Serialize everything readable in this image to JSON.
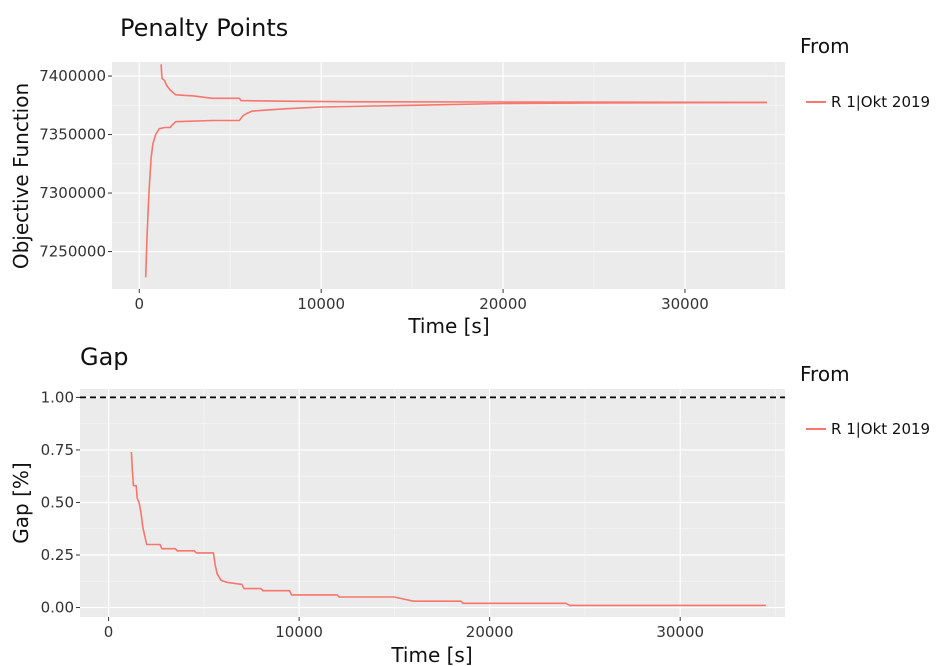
{
  "chart_data": [
    {
      "type": "line",
      "title": "Penalty Points",
      "xlabel": "Time [s]",
      "ylabel": "Objective Function",
      "xlim": [
        -1500,
        35500
      ],
      "ylim": [
        7218000,
        7412000
      ],
      "xticks": [
        0,
        10000,
        20000,
        30000
      ],
      "xtick_labels": [
        "0",
        "10000",
        "20000",
        "30000"
      ],
      "yticks": [
        7250000,
        7300000,
        7350000,
        7400000
      ],
      "ytick_labels": [
        "7250000",
        "7300000",
        "7350000",
        "7400000"
      ],
      "grid": true,
      "legend": {
        "title": "From",
        "placement": "right"
      },
      "series": [
        {
          "name": "R 1|Okt 2019",
          "color": "#F8766D",
          "segments": [
            [
              [
                1200,
                7410000
              ],
              [
                1250,
                7398000
              ],
              [
                1400,
                7396000
              ],
              [
                1500,
                7392000
              ],
              [
                1700,
                7388000
              ],
              [
                2000,
                7384000
              ],
              [
                3000,
                7383000
              ],
              [
                4000,
                7381000
              ],
              [
                5500,
                7381000
              ],
              [
                5600,
                7379000
              ],
              [
                8000,
                7378500
              ],
              [
                12000,
                7378000
              ],
              [
                20000,
                7377800
              ],
              [
                34500,
                7377500
              ]
            ],
            [
              [
                350,
                7228000
              ],
              [
                420,
                7260000
              ],
              [
                500,
                7290000
              ],
              [
                550,
                7305000
              ],
              [
                650,
                7330000
              ],
              [
                750,
                7342000
              ],
              [
                900,
                7350000
              ],
              [
                1100,
                7355000
              ],
              [
                1400,
                7356000
              ],
              [
                1700,
                7356000
              ],
              [
                1800,
                7358000
              ],
              [
                2000,
                7361000
              ],
              [
                4000,
                7362000
              ],
              [
                5500,
                7362000
              ],
              [
                5700,
                7366000
              ],
              [
                5900,
                7368000
              ],
              [
                6200,
                7370000
              ],
              [
                8000,
                7372000
              ],
              [
                10000,
                7373500
              ],
              [
                15000,
                7375000
              ],
              [
                20000,
                7376500
              ],
              [
                25000,
                7377000
              ],
              [
                34500,
                7377500
              ]
            ]
          ]
        }
      ]
    },
    {
      "type": "line",
      "title": "Gap",
      "xlabel": "Time [s]",
      "ylabel": "Gap [%]",
      "xlim": [
        -1500,
        35500
      ],
      "ylim": [
        -0.045,
        1.04
      ],
      "xticks": [
        0,
        10000,
        20000,
        30000
      ],
      "xtick_labels": [
        "0",
        "10000",
        "20000",
        "30000"
      ],
      "yticks": [
        0.0,
        0.25,
        0.5,
        0.75,
        1.0
      ],
      "ytick_labels": [
        "0.00",
        "0.25",
        "0.50",
        "0.75",
        "1.00"
      ],
      "grid": true,
      "reference_line": {
        "y": 1.0,
        "style": "dashed",
        "color": "#000000"
      },
      "legend": {
        "title": "From",
        "placement": "right"
      },
      "series": [
        {
          "name": "R 1|Okt 2019",
          "color": "#F8766D",
          "segments": [
            [
              [
                1200,
                0.74
              ],
              [
                1250,
                0.65
              ],
              [
                1300,
                0.58
              ],
              [
                1450,
                0.58
              ],
              [
                1500,
                0.52
              ],
              [
                1600,
                0.5
              ],
              [
                1700,
                0.45
              ],
              [
                1800,
                0.38
              ],
              [
                1900,
                0.34
              ],
              [
                2000,
                0.3
              ],
              [
                2700,
                0.3
              ],
              [
                2800,
                0.28
              ],
              [
                3500,
                0.28
              ],
              [
                3600,
                0.27
              ],
              [
                4500,
                0.27
              ],
              [
                4600,
                0.26
              ],
              [
                5500,
                0.26
              ],
              [
                5600,
                0.2
              ],
              [
                5700,
                0.16
              ],
              [
                5900,
                0.13
              ],
              [
                6200,
                0.12
              ],
              [
                7000,
                0.11
              ],
              [
                7100,
                0.09
              ],
              [
                8000,
                0.09
              ],
              [
                8100,
                0.08
              ],
              [
                9500,
                0.08
              ],
              [
                9600,
                0.06
              ],
              [
                12000,
                0.06
              ],
              [
                12100,
                0.05
              ],
              [
                15000,
                0.05
              ],
              [
                15500,
                0.04
              ],
              [
                16000,
                0.03
              ],
              [
                18500,
                0.03
              ],
              [
                18600,
                0.02
              ],
              [
                24000,
                0.02
              ],
              [
                24200,
                0.01
              ],
              [
                34500,
                0.01
              ]
            ]
          ]
        }
      ]
    }
  ]
}
